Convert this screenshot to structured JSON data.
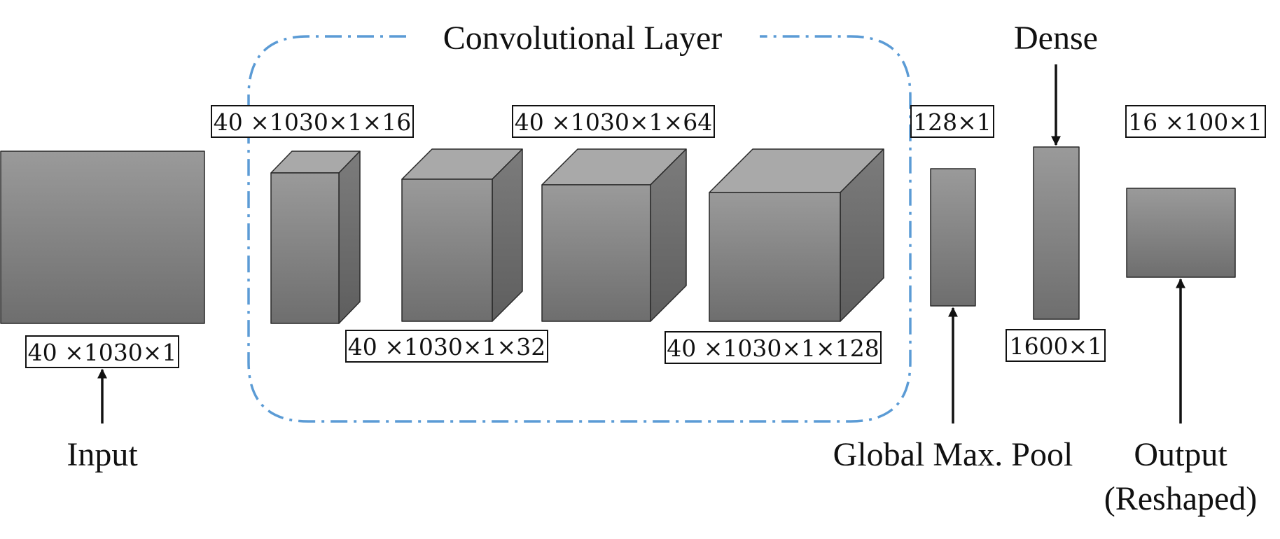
{
  "labels": {
    "input": "Input",
    "conv_layer": "Convolutional Layer",
    "dense": "Dense",
    "global_max_pool": "Global Max. Pool",
    "output_line1": "Output",
    "output_line2": "(Reshaped)"
  },
  "dims": {
    "input": "40 ×1030×1",
    "conv1": "40 ×1030×1×16",
    "conv2": "40 ×1030×1×32",
    "conv3": "40 ×1030×1×64",
    "conv4": "40 ×1030×1×128",
    "pool": "128×1",
    "dense": "1600×1",
    "output": "16 ×100×1"
  },
  "colors": {
    "conv_border": "#5b9bd5",
    "block_top": "#9a9a9a",
    "block_bottom": "#6e6e6e",
    "cube_top_face": "#a9a9a9",
    "cube_side_face": "#6f6f6f"
  }
}
